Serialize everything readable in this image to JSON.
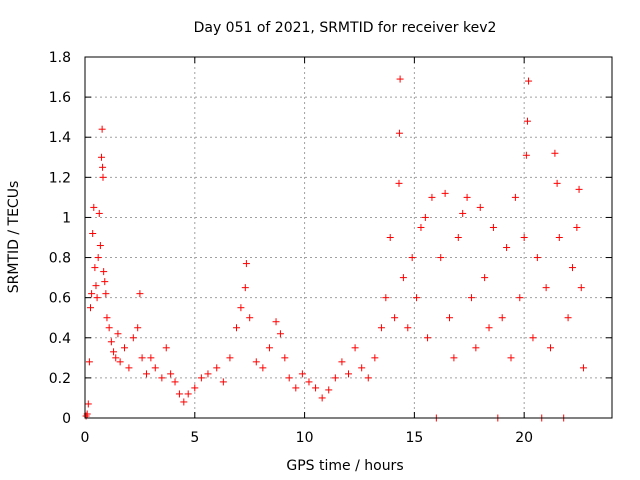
{
  "chart_data": {
    "type": "scatter",
    "title": "Day 051 of 2021, SRMTID for receiver kev2",
    "xlabel": "GPS time / hours",
    "ylabel": "SRMTID / TECUs",
    "xlim": [
      0,
      24
    ],
    "ylim": [
      0,
      1.8
    ],
    "xticks": [
      0,
      5,
      10,
      15,
      20
    ],
    "yticks": [
      0,
      0.2,
      0.4,
      0.6,
      0.8,
      1,
      1.2,
      1.4,
      1.6,
      1.8
    ],
    "xtick_labels": [
      "0",
      "5",
      "10",
      "15",
      "20"
    ],
    "ytick_labels": [
      "0",
      "0.2",
      "0.4",
      "0.6",
      "0.8",
      "1",
      "1.2",
      "1.4",
      "1.6",
      "1.8"
    ],
    "grid": true,
    "marker": "+",
    "marker_color": "#ff0000",
    "series": [
      {
        "name": "SRMTID",
        "points": [
          [
            0.05,
            0.01
          ],
          [
            0.1,
            0.02
          ],
          [
            0.15,
            0.07
          ],
          [
            0.2,
            0.28
          ],
          [
            0.25,
            0.55
          ],
          [
            0.3,
            0.62
          ],
          [
            0.35,
            0.92
          ],
          [
            0.4,
            1.05
          ],
          [
            0.45,
            0.75
          ],
          [
            0.5,
            0.66
          ],
          [
            0.55,
            0.6
          ],
          [
            0.6,
            0.8
          ],
          [
            0.65,
            1.02
          ],
          [
            0.7,
            0.86
          ],
          [
            0.75,
            1.3
          ],
          [
            0.78,
            1.44
          ],
          [
            0.8,
            1.25
          ],
          [
            0.82,
            1.2
          ],
          [
            0.85,
            0.73
          ],
          [
            0.9,
            0.68
          ],
          [
            0.95,
            0.62
          ],
          [
            1.0,
            0.5
          ],
          [
            1.1,
            0.45
          ],
          [
            1.2,
            0.38
          ],
          [
            1.3,
            0.33
          ],
          [
            1.4,
            0.3
          ],
          [
            1.5,
            0.42
          ],
          [
            1.6,
            0.28
          ],
          [
            1.8,
            0.35
          ],
          [
            2.0,
            0.25
          ],
          [
            2.2,
            0.4
          ],
          [
            2.4,
            0.45
          ],
          [
            2.5,
            0.62
          ],
          [
            2.6,
            0.3
          ],
          [
            2.8,
            0.22
          ],
          [
            3.0,
            0.3
          ],
          [
            3.2,
            0.25
          ],
          [
            3.5,
            0.2
          ],
          [
            3.7,
            0.35
          ],
          [
            3.9,
            0.22
          ],
          [
            4.1,
            0.18
          ],
          [
            4.3,
            0.12
          ],
          [
            4.5,
            0.08
          ],
          [
            4.7,
            0.12
          ],
          [
            5.0,
            0.15
          ],
          [
            5.3,
            0.2
          ],
          [
            5.6,
            0.22
          ],
          [
            6.0,
            0.25
          ],
          [
            6.3,
            0.18
          ],
          [
            6.6,
            0.3
          ],
          [
            6.9,
            0.45
          ],
          [
            7.1,
            0.55
          ],
          [
            7.3,
            0.65
          ],
          [
            7.35,
            0.77
          ],
          [
            7.5,
            0.5
          ],
          [
            7.8,
            0.28
          ],
          [
            8.1,
            0.25
          ],
          [
            8.4,
            0.35
          ],
          [
            8.7,
            0.48
          ],
          [
            8.9,
            0.42
          ],
          [
            9.1,
            0.3
          ],
          [
            9.3,
            0.2
          ],
          [
            9.6,
            0.15
          ],
          [
            9.9,
            0.22
          ],
          [
            10.2,
            0.18
          ],
          [
            10.5,
            0.15
          ],
          [
            10.8,
            0.1
          ],
          [
            11.1,
            0.14
          ],
          [
            11.4,
            0.2
          ],
          [
            11.7,
            0.28
          ],
          [
            12.0,
            0.22
          ],
          [
            12.3,
            0.35
          ],
          [
            12.6,
            0.25
          ],
          [
            12.9,
            0.2
          ],
          [
            13.2,
            0.3
          ],
          [
            13.5,
            0.45
          ],
          [
            13.7,
            0.6
          ],
          [
            13.9,
            0.9
          ],
          [
            14.1,
            0.5
          ],
          [
            14.3,
            1.17
          ],
          [
            14.32,
            1.42
          ],
          [
            14.35,
            1.69
          ],
          [
            14.5,
            0.7
          ],
          [
            14.7,
            0.45
          ],
          [
            14.9,
            0.8
          ],
          [
            15.1,
            0.6
          ],
          [
            15.3,
            0.95
          ],
          [
            15.5,
            1.0
          ],
          [
            15.6,
            0.4
          ],
          [
            15.8,
            1.1
          ],
          [
            16.0,
            0.0
          ],
          [
            16.2,
            0.8
          ],
          [
            16.4,
            1.12
          ],
          [
            16.6,
            0.5
          ],
          [
            16.8,
            0.3
          ],
          [
            17.0,
            0.9
          ],
          [
            17.2,
            1.02
          ],
          [
            17.4,
            1.1
          ],
          [
            17.6,
            0.6
          ],
          [
            17.8,
            0.35
          ],
          [
            18.0,
            1.05
          ],
          [
            18.2,
            0.7
          ],
          [
            18.4,
            0.45
          ],
          [
            18.6,
            0.95
          ],
          [
            18.8,
            0.0
          ],
          [
            19.0,
            0.5
          ],
          [
            19.2,
            0.85
          ],
          [
            19.4,
            0.3
          ],
          [
            19.6,
            1.1
          ],
          [
            19.8,
            0.6
          ],
          [
            20.0,
            0.9
          ],
          [
            20.1,
            1.31
          ],
          [
            20.15,
            1.48
          ],
          [
            20.2,
            1.68
          ],
          [
            20.4,
            0.4
          ],
          [
            20.6,
            0.8
          ],
          [
            20.8,
            0.0
          ],
          [
            21.0,
            0.65
          ],
          [
            21.2,
            0.35
          ],
          [
            21.4,
            1.32
          ],
          [
            21.5,
            1.17
          ],
          [
            21.6,
            0.9
          ],
          [
            21.8,
            0.0
          ],
          [
            22.0,
            0.5
          ],
          [
            22.2,
            0.75
          ],
          [
            22.4,
            0.95
          ],
          [
            22.5,
            1.14
          ],
          [
            22.6,
            0.65
          ],
          [
            22.7,
            0.25
          ]
        ]
      }
    ]
  }
}
